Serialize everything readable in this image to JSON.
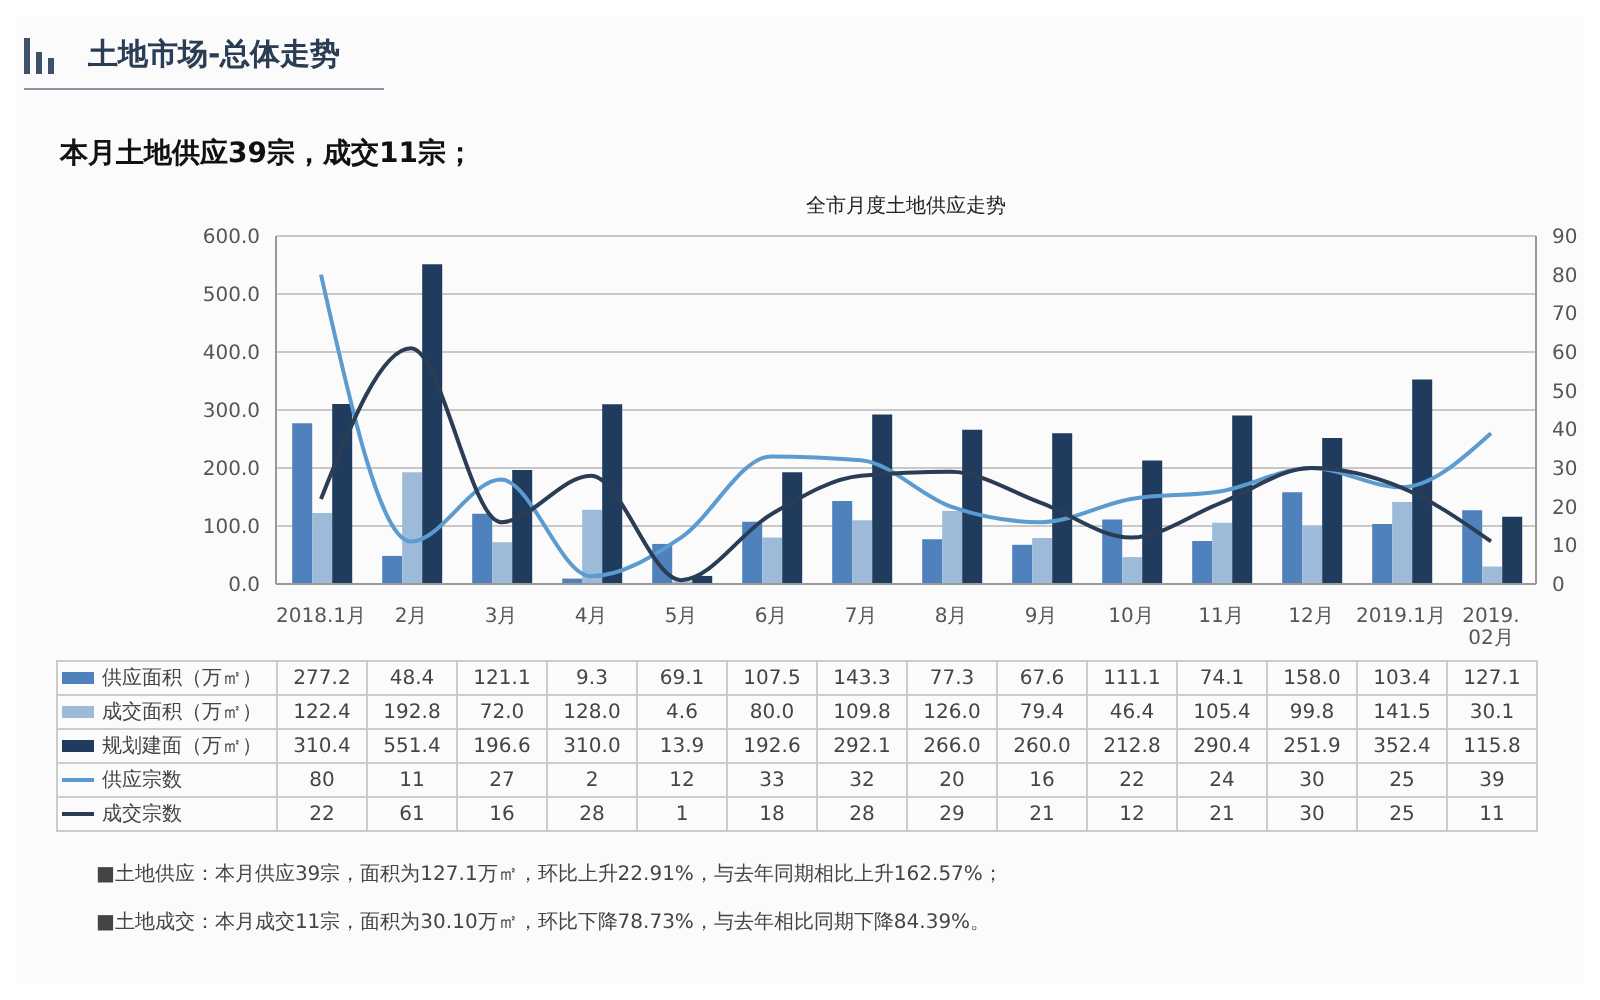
{
  "chart_data": {
    "type": "bar",
    "title": "全市月度土地供应走势",
    "subtitle": "本月土地供应39宗，成交11宗；",
    "annotations": [
      "土地市场-总体走势",
      "■土地供应：本月供应39宗，面积为127.1万㎡，环比上升22.91%，与去年同期相比上升162.57%；",
      "■土地成交：本月成交11宗，面积为30.10万㎡，环比下降78.73%，与去年相比同期下降84.39%。"
    ],
    "categories": [
      "2018.1月",
      "2月",
      "3月",
      "4月",
      "5月",
      "6月",
      "7月",
      "8月",
      "9月",
      "10月",
      "11月",
      "12月",
      "2019.1月",
      "2019.02月"
    ],
    "series": [
      {
        "name": "供应面积（万㎡）",
        "color": "#4f81bd",
        "values": [
          277.2,
          48.4,
          121.1,
          9.3,
          69.1,
          107.5,
          143.3,
          77.3,
          67.6,
          111.1,
          74.1,
          158.0,
          103.4,
          127.1
        ],
        "value_labels": [
          "277.2",
          "48.4",
          "121.1",
          "9.3",
          "69.1",
          "107.5",
          "143.3",
          "77.3",
          "67.6",
          "111.1",
          "74.1",
          "158.0",
          "103.4",
          "127.1"
        ]
      },
      {
        "name": "成交面积（万㎡）",
        "color": "#9dbbd8",
        "values": [
          122.4,
          192.8,
          72.0,
          128.0,
          4.6,
          80.0,
          109.8,
          126.0,
          79.4,
          46.4,
          105.4,
          99.8,
          141.5,
          30.1
        ],
        "value_labels": [
          "122.4",
          "192.8",
          "72.0",
          "128.0",
          "4.6",
          "80.0",
          "109.8",
          "126.0",
          "79.4",
          "46.4",
          "105.4",
          "99.8",
          "141.5",
          "30.1"
        ]
      },
      {
        "name": "规划建面（万㎡）",
        "color": "#1f3b5e",
        "values": [
          310.4,
          551.4,
          196.6,
          310.0,
          13.9,
          192.6,
          292.1,
          266.0,
          260.0,
          212.8,
          290.4,
          251.9,
          352.4,
          115.8
        ],
        "value_labels": [
          "310.4",
          "551.4",
          "196.6",
          "310.0",
          "13.9",
          "192.6",
          "292.1",
          "266.0",
          "260.0",
          "212.8",
          "290.4",
          "251.9",
          "352.4",
          "115.8"
        ]
      },
      {
        "name": "供应宗数",
        "type": "line",
        "axis": "y2",
        "color": "#5b9bd0",
        "values": [
          80,
          11,
          27,
          2,
          12,
          33,
          32,
          20,
          16,
          22,
          24,
          30,
          25,
          39
        ],
        "value_labels": [
          "80",
          "11",
          "27",
          "2",
          "12",
          "33",
          "32",
          "20",
          "16",
          "22",
          "24",
          "30",
          "25",
          "39"
        ]
      },
      {
        "name": "成交宗数",
        "type": "line",
        "axis": "y2",
        "color": "#2b3d55",
        "values": [
          22,
          61,
          16,
          28,
          1,
          18,
          28,
          29,
          21,
          12,
          21,
          30,
          25,
          11
        ],
        "value_labels": [
          "22",
          "61",
          "16",
          "28",
          "1",
          "18",
          "28",
          "29",
          "21",
          "12",
          "21",
          "30",
          "25",
          "11"
        ]
      }
    ],
    "ylim": [
      0,
      600
    ],
    "yticks": [
      {
        "value": 0,
        "label": "0.0"
      },
      {
        "value": 100,
        "label": "100.0"
      },
      {
        "value": 200,
        "label": "200.0"
      },
      {
        "value": 300,
        "label": "300.0"
      },
      {
        "value": 400,
        "label": "400.0"
      },
      {
        "value": 500,
        "label": "500.0"
      },
      {
        "value": 600,
        "label": "600.0"
      }
    ],
    "y2lim": [
      0,
      90
    ],
    "y2ticks": [
      0,
      10,
      20,
      30,
      40,
      50,
      60,
      70,
      80,
      90
    ],
    "grid": "y",
    "legend": "bottom",
    "marker": "none",
    "line_style": "solid"
  }
}
